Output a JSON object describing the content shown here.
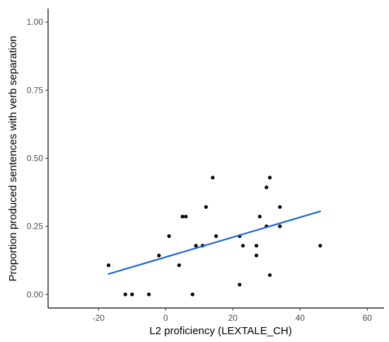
{
  "chart_data": {
    "type": "scatter",
    "title": "",
    "xlabel": "L2 proficiency (LEXTALE_CH)",
    "ylabel": "Proportion produced sentences with verb separation",
    "xlim": [
      -35,
      65
    ],
    "ylim": [
      -0.05,
      1.05
    ],
    "x_ticks": [
      -20,
      0,
      20,
      40,
      60
    ],
    "x_tick_labels": [
      "-20",
      "0",
      "20",
      "40",
      "60"
    ],
    "y_ticks": [
      0,
      0.25,
      0.5,
      0.75,
      1
    ],
    "y_tick_labels": [
      "0.00",
      "0.25",
      "0.50",
      "0.75",
      "1.00"
    ],
    "grid": false,
    "point_color": "#000000",
    "line_color": "#1a66d9",
    "points": [
      {
        "x": -17,
        "y": 0.107
      },
      {
        "x": -12,
        "y": 0.0
      },
      {
        "x": -10,
        "y": 0.0
      },
      {
        "x": -5,
        "y": 0.0
      },
      {
        "x": -2,
        "y": 0.143
      },
      {
        "x": 1,
        "y": 0.214
      },
      {
        "x": 4,
        "y": 0.107
      },
      {
        "x": 5,
        "y": 0.286
      },
      {
        "x": 6,
        "y": 0.286
      },
      {
        "x": 8,
        "y": 0.0
      },
      {
        "x": 9,
        "y": 0.179
      },
      {
        "x": 11,
        "y": 0.179
      },
      {
        "x": 12,
        "y": 0.321
      },
      {
        "x": 14,
        "y": 0.429
      },
      {
        "x": 15,
        "y": 0.214
      },
      {
        "x": 22,
        "y": 0.214
      },
      {
        "x": 22,
        "y": 0.036
      },
      {
        "x": 23,
        "y": 0.179
      },
      {
        "x": 27,
        "y": 0.179
      },
      {
        "x": 27,
        "y": 0.143
      },
      {
        "x": 28,
        "y": 0.286
      },
      {
        "x": 30,
        "y": 0.393
      },
      {
        "x": 30,
        "y": 0.25
      },
      {
        "x": 31,
        "y": 0.429
      },
      {
        "x": 31,
        "y": 0.071
      },
      {
        "x": 34,
        "y": 0.321
      },
      {
        "x": 34,
        "y": 0.25
      },
      {
        "x": 46,
        "y": 0.179
      }
    ],
    "fit_line": {
      "x": [
        -17,
        46
      ],
      "y": [
        0.075,
        0.305
      ]
    }
  }
}
